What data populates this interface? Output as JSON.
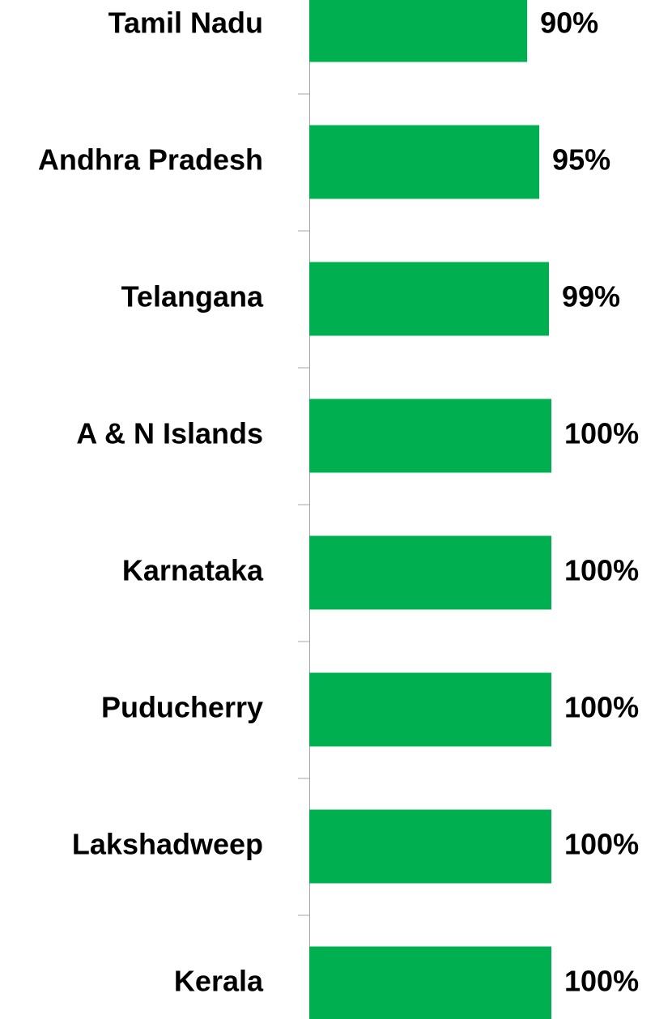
{
  "chart_data": {
    "type": "bar",
    "orientation": "horizontal",
    "categories": [
      "Tamil Nadu",
      "Andhra Pradesh",
      "Telangana",
      "A & N Islands",
      "Karnataka",
      "Puducherry",
      "Lakshadweep",
      "Kerala"
    ],
    "values": [
      90,
      95,
      99,
      100,
      100,
      100,
      100,
      100
    ],
    "value_labels": [
      "90%",
      "95%",
      "99%",
      "100%",
      "100%",
      "100%",
      "100%",
      "100%"
    ],
    "color": "#00b050",
    "xlim": [
      0,
      100
    ]
  }
}
